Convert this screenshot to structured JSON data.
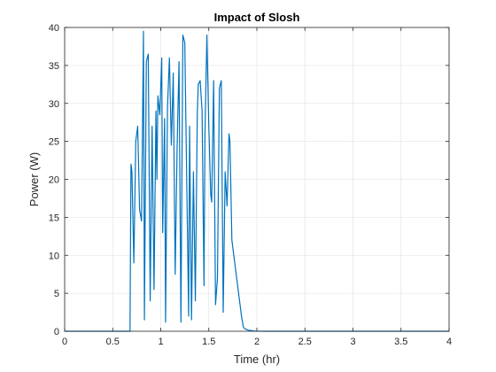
{
  "chart_data": {
    "type": "line",
    "title": "Impact of Slosh",
    "xlabel": "Time (hr)",
    "ylabel": "Power (W)",
    "xlim": [
      0,
      4
    ],
    "ylim": [
      0,
      40
    ],
    "xticks": [
      0,
      0.5,
      1,
      1.5,
      2,
      2.5,
      3,
      3.5,
      4
    ],
    "xtick_labels": [
      "0",
      "0.5",
      "1",
      "1.5",
      "2",
      "2.5",
      "3",
      "3.5",
      "4"
    ],
    "yticks": [
      0,
      5,
      10,
      15,
      20,
      25,
      30,
      35,
      40
    ],
    "ytick_labels": [
      "0",
      "5",
      "10",
      "15",
      "20",
      "25",
      "30",
      "35",
      "40"
    ],
    "grid": true,
    "line_color": "#0072BD",
    "series": [
      {
        "x": [
          0,
          0.68,
          0.69,
          0.7,
          0.72,
          0.74,
          0.76,
          0.78,
          0.8,
          0.82,
          0.83,
          0.85,
          0.87,
          0.89,
          0.91,
          0.93,
          0.95,
          0.96,
          0.97,
          0.99,
          1.01,
          1.02,
          1.04,
          1.05,
          1.07,
          1.09,
          1.11,
          1.13,
          1.15,
          1.17,
          1.19,
          1.21,
          1.23,
          1.25,
          1.27,
          1.29,
          1.3,
          1.32,
          1.34,
          1.36,
          1.38,
          1.39,
          1.41,
          1.43,
          1.45,
          1.46,
          1.48,
          1.5,
          1.52,
          1.53,
          1.55,
          1.57,
          1.59,
          1.61,
          1.63,
          1.65,
          1.67,
          1.69,
          1.71,
          1.72,
          1.74,
          1.76,
          1.78,
          1.8,
          1.82,
          1.84,
          1.86,
          1.88,
          1.9,
          1.92,
          1.94,
          1.96,
          1.98,
          2.0,
          2.09,
          4
        ],
        "y": [
          0,
          0,
          22,
          21,
          9,
          25,
          27,
          16,
          14.5,
          39.5,
          1.5,
          35.5,
          36.5,
          4,
          27,
          5.5,
          29,
          20,
          31,
          28.5,
          36,
          13,
          28,
          1.2,
          29.5,
          36,
          24.5,
          34,
          7.5,
          24,
          35.5,
          1.2,
          39,
          38,
          20,
          2,
          27,
          1.5,
          21,
          4,
          28.5,
          32.5,
          33,
          29,
          6,
          26,
          39,
          27,
          18,
          17,
          33,
          3.5,
          7,
          32,
          33,
          2.5,
          21,
          16.5,
          26,
          25,
          12,
          10,
          8,
          6,
          4,
          2,
          0.5,
          0.3,
          0.2,
          0.1,
          0.1,
          0.05,
          0.02,
          0.01,
          0,
          0
        ]
      }
    ]
  }
}
